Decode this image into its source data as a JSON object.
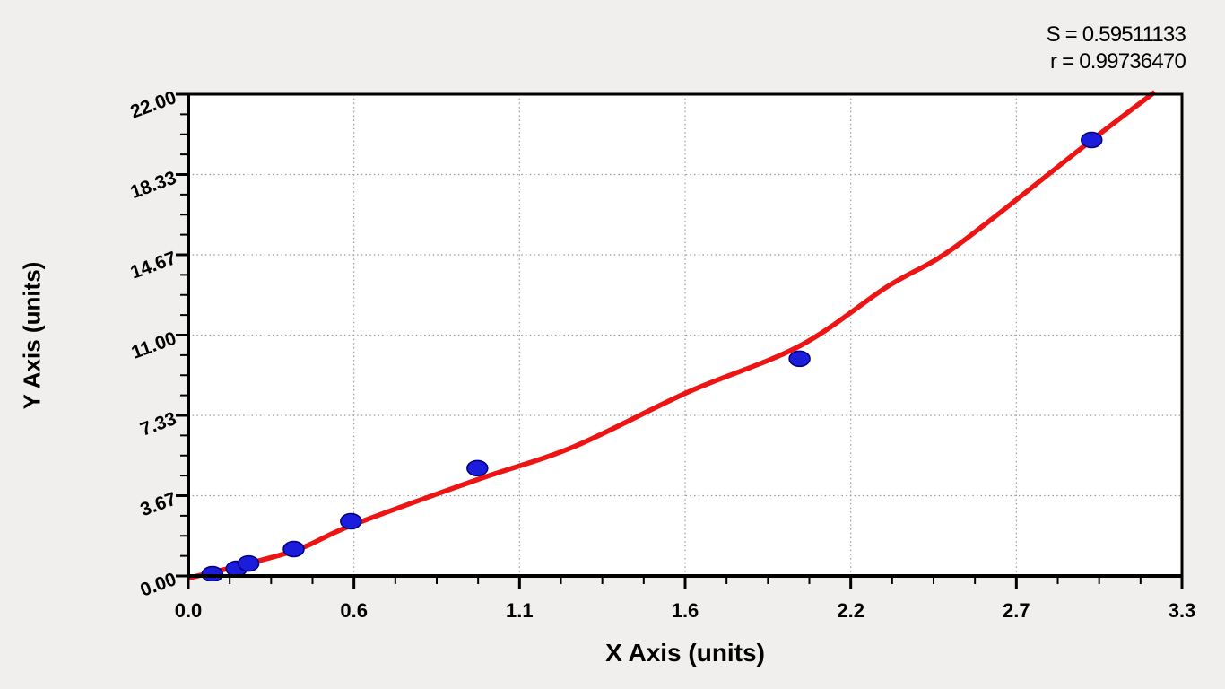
{
  "stats": {
    "s_line": "S = 0.59511133",
    "r_line": "r = 0.99736470",
    "S": 0.59511133,
    "r": 0.9973647
  },
  "axes": {
    "x_title": "X Axis (units)",
    "y_title": "Y Axis (units)",
    "x_tick_labels": [
      "0.0",
      "0.6",
      "1.1",
      "1.6",
      "2.2",
      "2.7",
      "3.3"
    ],
    "y_tick_labels": [
      "0.00",
      "3.67",
      "7.33",
      "11.00",
      "14.67",
      "18.33",
      "22.00"
    ],
    "minor_ticks_per_interval": 3
  },
  "chart_data": {
    "type": "scatter",
    "title": "",
    "xlabel": "X Axis (units)",
    "ylabel": "Y Axis (units)",
    "xlim": [
      0,
      3.3
    ],
    "ylim": [
      0,
      22
    ],
    "grid": "dotted, at major ticks",
    "legend": "none",
    "annotations": [
      "S = 0.59511133",
      "r = 0.99736470"
    ],
    "series": [
      {
        "name": "standard-points",
        "type": "scatter",
        "marker": "ellipse",
        "color": "#1c1cdc",
        "points": [
          [
            0.08,
            0.08
          ],
          [
            0.16,
            0.33
          ],
          [
            0.2,
            0.57
          ],
          [
            0.35,
            1.23
          ],
          [
            0.54,
            2.5
          ],
          [
            0.96,
            4.92
          ],
          [
            2.03,
            9.92
          ],
          [
            3.0,
            19.91
          ]
        ]
      },
      {
        "name": "fitted-curve",
        "type": "line",
        "color": "#ed1414",
        "points": [
          [
            0.0,
            -0.1
          ],
          [
            0.34,
            1.1
          ],
          [
            0.54,
            2.3
          ],
          [
            0.96,
            4.4
          ],
          [
            1.28,
            5.9
          ],
          [
            1.66,
            8.4
          ],
          [
            2.03,
            10.5
          ],
          [
            2.32,
            13.2
          ],
          [
            2.49,
            14.5
          ],
          [
            2.65,
            16.1
          ],
          [
            3.0,
            19.9
          ],
          [
            3.21,
            22.1
          ]
        ]
      }
    ]
  },
  "colors": {
    "background": "#f0efee",
    "plot_background": "#ffffff",
    "frame": "#000000",
    "grid": "#9a9a9a",
    "point_fill": "#1c1cdc",
    "point_edge": "#00007e",
    "curve": "#ed1414",
    "text": "#000000"
  }
}
